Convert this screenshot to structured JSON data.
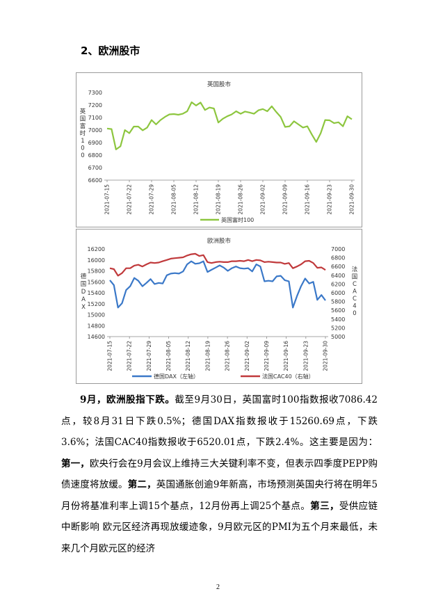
{
  "section_heading": "2、欧洲股市",
  "chart_data": [
    {
      "type": "line",
      "title": "英国股市",
      "ylabel": "英国富时100",
      "ylim": [
        6600,
        7300
      ],
      "yticks": [
        6600,
        6700,
        6800,
        6900,
        7000,
        7100,
        7200,
        7300
      ],
      "xtick_labels": [
        "2021-07-15",
        "2021-07-22",
        "2021-07-29",
        "2021-08-05",
        "2021-08-12",
        "2021-08-19",
        "2021-08-26",
        "2021-09-02",
        "2021-09-09",
        "2021-09-16",
        "2021-09-23",
        "2021-09-30"
      ],
      "series": [
        {
          "name": "英国富时100",
          "color": "#8dc63f",
          "values": [
            7012,
            7008,
            6845,
            6870,
            7000,
            6975,
            7028,
            7028,
            6998,
            7020,
            7080,
            7045,
            7080,
            7105,
            7125,
            7128,
            7122,
            7130,
            7150,
            7222,
            7196,
            7220,
            7160,
            7180,
            7172,
            7060,
            7090,
            7110,
            7125,
            7150,
            7130,
            7148,
            7140,
            7130,
            7158,
            7168,
            7150,
            7190,
            7145,
            7105,
            7025,
            7030,
            7070,
            7045,
            7020,
            7030,
            6965,
            6905,
            6975,
            7080,
            7078,
            7055,
            7062,
            7030,
            7110,
            7086
          ]
        }
      ]
    },
    {
      "type": "line",
      "title": "欧洲股市",
      "ylabel_left": "德国DAX",
      "ylabel_right": "法国CAC40",
      "ylim_left": [
        14600,
        16200
      ],
      "ylim_right": [
        5000,
        7000
      ],
      "yticks_left": [
        14600,
        14800,
        15000,
        15200,
        15400,
        15600,
        15800,
        16000,
        16200
      ],
      "yticks_right": [
        5000,
        5200,
        5400,
        5600,
        5800,
        6000,
        6200,
        6400,
        6600,
        6800,
        7000
      ],
      "xtick_labels": [
        "2021-07-15",
        "2021-07-22",
        "2021-07-29",
        "2021-08-05",
        "2021-08-12",
        "2021-08-19",
        "2021-08-26",
        "2021-09-02",
        "2021-09-09",
        "2021-09-16",
        "2021-09-23",
        "2021-09-30"
      ],
      "series": [
        {
          "name": "德国DAX（左轴）",
          "axis": "left",
          "color": "#3a78c8",
          "values": [
            15630,
            15540,
            15130,
            15210,
            15450,
            15520,
            15670,
            15620,
            15520,
            15580,
            15650,
            15560,
            15580,
            15570,
            15720,
            15750,
            15760,
            15750,
            15790,
            15920,
            15975,
            15930,
            15940,
            15975,
            15780,
            15820,
            15860,
            15900,
            15860,
            15800,
            15850,
            15880,
            15850,
            15840,
            15850,
            15790,
            15920,
            15880,
            15610,
            15620,
            15610,
            15700,
            15710,
            15630,
            15610,
            15130,
            15340,
            15520,
            15660,
            15570,
            15600,
            15270,
            15360,
            15260
          ]
        },
        {
          "name": "法国CAC40（右轴）",
          "axis": "right",
          "color": "#c0393b",
          "values": [
            6560,
            6540,
            6390,
            6450,
            6560,
            6560,
            6620,
            6640,
            6600,
            6650,
            6690,
            6680,
            6690,
            6720,
            6750,
            6780,
            6790,
            6800,
            6810,
            6850,
            6880,
            6890,
            6840,
            6860,
            6700,
            6680,
            6700,
            6710,
            6700,
            6700,
            6720,
            6720,
            6730,
            6720,
            6750,
            6720,
            6750,
            6740,
            6700,
            6710,
            6700,
            6690,
            6690,
            6660,
            6680,
            6560,
            6600,
            6650,
            6720,
            6730,
            6680,
            6570,
            6580,
            6520
          ]
        }
      ]
    }
  ],
  "paragraph": {
    "lead": "9月，欧洲股指下跌。",
    "text1": "截至9月30日，英国富时100指数报收7086.42点，较8月31日下跌0.5%；德国DAX指数报收于15260.69点，下跌3.6%；法国CAC40指数报收于6520.01点，下跌2.4%。这主要是因为：",
    "first_label": "第一，",
    "first_text": "欧央行会在9月会议上维持三大关键利率不变，但表示四季度PEPP购债速度将放缓。",
    "second_label": "第二，",
    "second_text": "英国通胀创逾9年新高，市场预测英国央行将在明年5月份将基准利率上调15个基点，12月份再上调25个基点。",
    "third_label": "第三，",
    "third_text": "受供应链中断影响 欧元区经济再现放缓迹象，9月欧元区的PMI为五个月来最低，未来几个月欧元区的经济"
  },
  "page_number": "2"
}
